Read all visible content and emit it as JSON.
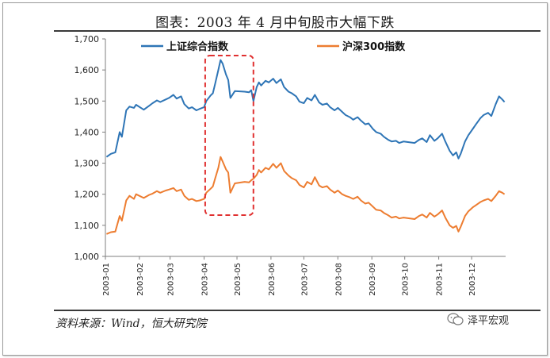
{
  "title": "图表：2003 年 4 月中旬股市大幅下跌",
  "source": "资料来源：Wind，恒大研究院",
  "watermark": "泽平宏观",
  "chart_data": {
    "type": "line",
    "x_tick_labels": [
      "2003-01",
      "2003-02",
      "2003-03",
      "2003-04",
      "2003-05",
      "2003-06",
      "2003-07",
      "2003-08",
      "2003-09",
      "2003-10",
      "2003-11",
      "2003-12"
    ],
    "y_tick_labels": [
      "1,000",
      "1,100",
      "1,200",
      "1,300",
      "1,400",
      "1,500",
      "1,600",
      "1,700"
    ],
    "ylim": [
      1000,
      1700
    ],
    "xlim": [
      "2003-01-01",
      "2004-01-01"
    ],
    "grid": false,
    "legend_position": "top-center",
    "annotation": "red dashed box around mid-April to mid-May 2003",
    "highlight_range": [
      "2003-04-02",
      "2003-05-16"
    ],
    "series": [
      {
        "name": "上证综合指数",
        "color": "#2e75b6",
        "points": [
          [
            "2003-01-02",
            1320
          ],
          [
            "2003-01-06",
            1330
          ],
          [
            "2003-01-10",
            1335
          ],
          [
            "2003-01-14",
            1400
          ],
          [
            "2003-01-16",
            1385
          ],
          [
            "2003-01-20",
            1470
          ],
          [
            "2003-01-23",
            1482
          ],
          [
            "2003-01-27",
            1478
          ],
          [
            "2003-01-29",
            1488
          ],
          [
            "2003-02-05",
            1472
          ],
          [
            "2003-02-10",
            1485
          ],
          [
            "2003-02-13",
            1493
          ],
          [
            "2003-02-17",
            1502
          ],
          [
            "2003-02-20",
            1497
          ],
          [
            "2003-02-25",
            1505
          ],
          [
            "2003-02-28",
            1510
          ],
          [
            "2003-03-04",
            1520
          ],
          [
            "2003-03-07",
            1508
          ],
          [
            "2003-03-11",
            1515
          ],
          [
            "2003-03-14",
            1490
          ],
          [
            "2003-03-18",
            1476
          ],
          [
            "2003-03-21",
            1480
          ],
          [
            "2003-03-25",
            1470
          ],
          [
            "2003-03-28",
            1475
          ],
          [
            "2003-04-01",
            1480
          ],
          [
            "2003-04-03",
            1500
          ],
          [
            "2003-04-07",
            1518
          ],
          [
            "2003-04-09",
            1525
          ],
          [
            "2003-04-11",
            1555
          ],
          [
            "2003-04-14",
            1600
          ],
          [
            "2003-04-16",
            1632
          ],
          [
            "2003-04-18",
            1620
          ],
          [
            "2003-04-21",
            1585
          ],
          [
            "2003-04-23",
            1568
          ],
          [
            "2003-04-25",
            1510
          ],
          [
            "2003-04-29",
            1532
          ],
          [
            "2003-05-08",
            1530
          ],
          [
            "2003-05-12",
            1528
          ],
          [
            "2003-05-14",
            1535
          ],
          [
            "2003-05-16",
            1500
          ],
          [
            "2003-05-19",
            1545
          ],
          [
            "2003-05-21",
            1560
          ],
          [
            "2003-05-23",
            1550
          ],
          [
            "2003-05-27",
            1565
          ],
          [
            "2003-05-30",
            1560
          ],
          [
            "2003-06-03",
            1572
          ],
          [
            "2003-06-06",
            1558
          ],
          [
            "2003-06-10",
            1570
          ],
          [
            "2003-06-13",
            1545
          ],
          [
            "2003-06-17",
            1530
          ],
          [
            "2003-06-20",
            1525
          ],
          [
            "2003-06-24",
            1515
          ],
          [
            "2003-06-27",
            1498
          ],
          [
            "2003-07-01",
            1493
          ],
          [
            "2003-07-04",
            1510
          ],
          [
            "2003-07-08",
            1502
          ],
          [
            "2003-07-11",
            1520
          ],
          [
            "2003-07-15",
            1495
          ],
          [
            "2003-07-18",
            1488
          ],
          [
            "2003-07-22",
            1492
          ],
          [
            "2003-07-25",
            1480
          ],
          [
            "2003-07-29",
            1470
          ],
          [
            "2003-08-01",
            1478
          ],
          [
            "2003-08-05",
            1465
          ],
          [
            "2003-08-08",
            1455
          ],
          [
            "2003-08-12",
            1448
          ],
          [
            "2003-08-15",
            1440
          ],
          [
            "2003-08-19",
            1448
          ],
          [
            "2003-08-22",
            1437
          ],
          [
            "2003-08-26",
            1425
          ],
          [
            "2003-08-29",
            1428
          ],
          [
            "2003-09-02",
            1410
          ],
          [
            "2003-09-05",
            1400
          ],
          [
            "2003-09-09",
            1395
          ],
          [
            "2003-09-12",
            1385
          ],
          [
            "2003-09-16",
            1375
          ],
          [
            "2003-09-19",
            1370
          ],
          [
            "2003-09-23",
            1372
          ],
          [
            "2003-09-26",
            1365
          ],
          [
            "2003-09-30",
            1370
          ],
          [
            "2003-10-10",
            1365
          ],
          [
            "2003-10-14",
            1375
          ],
          [
            "2003-10-17",
            1380
          ],
          [
            "2003-10-21",
            1368
          ],
          [
            "2003-10-24",
            1390
          ],
          [
            "2003-10-28",
            1372
          ],
          [
            "2003-10-31",
            1380
          ],
          [
            "2003-11-04",
            1395
          ],
          [
            "2003-11-07",
            1370
          ],
          [
            "2003-11-11",
            1340
          ],
          [
            "2003-11-14",
            1325
          ],
          [
            "2003-11-17",
            1335
          ],
          [
            "2003-11-19",
            1315
          ],
          [
            "2003-11-21",
            1330
          ],
          [
            "2003-11-25",
            1370
          ],
          [
            "2003-11-28",
            1390
          ],
          [
            "2003-12-02",
            1410
          ],
          [
            "2003-12-05",
            1425
          ],
          [
            "2003-12-09",
            1445
          ],
          [
            "2003-12-12",
            1455
          ],
          [
            "2003-12-16",
            1462
          ],
          [
            "2003-12-19",
            1452
          ],
          [
            "2003-12-23",
            1490
          ],
          [
            "2003-12-26",
            1515
          ],
          [
            "2003-12-29",
            1505
          ],
          [
            "2003-12-31",
            1497
          ]
        ]
      },
      {
        "name": "沪深300指数",
        "color": "#ed7d31",
        "points": [
          [
            "2003-01-02",
            1072
          ],
          [
            "2003-01-06",
            1078
          ],
          [
            "2003-01-10",
            1080
          ],
          [
            "2003-01-14",
            1130
          ],
          [
            "2003-01-16",
            1115
          ],
          [
            "2003-01-20",
            1180
          ],
          [
            "2003-01-23",
            1195
          ],
          [
            "2003-01-27",
            1185
          ],
          [
            "2003-01-29",
            1200
          ],
          [
            "2003-02-05",
            1188
          ],
          [
            "2003-02-10",
            1198
          ],
          [
            "2003-02-13",
            1202
          ],
          [
            "2003-02-17",
            1210
          ],
          [
            "2003-02-20",
            1205
          ],
          [
            "2003-02-25",
            1212
          ],
          [
            "2003-02-28",
            1215
          ],
          [
            "2003-03-04",
            1220
          ],
          [
            "2003-03-07",
            1210
          ],
          [
            "2003-03-11",
            1215
          ],
          [
            "2003-03-14",
            1195
          ],
          [
            "2003-03-18",
            1182
          ],
          [
            "2003-03-21",
            1185
          ],
          [
            "2003-03-25",
            1178
          ],
          [
            "2003-03-28",
            1180
          ],
          [
            "2003-04-01",
            1185
          ],
          [
            "2003-04-03",
            1205
          ],
          [
            "2003-04-07",
            1218
          ],
          [
            "2003-04-09",
            1225
          ],
          [
            "2003-04-11",
            1250
          ],
          [
            "2003-04-14",
            1285
          ],
          [
            "2003-04-16",
            1320
          ],
          [
            "2003-04-18",
            1305
          ],
          [
            "2003-04-21",
            1280
          ],
          [
            "2003-04-23",
            1270
          ],
          [
            "2003-04-25",
            1205
          ],
          [
            "2003-04-29",
            1235
          ],
          [
            "2003-05-08",
            1240
          ],
          [
            "2003-05-12",
            1238
          ],
          [
            "2003-05-14",
            1245
          ],
          [
            "2003-05-16",
            1250
          ],
          [
            "2003-05-19",
            1262
          ],
          [
            "2003-05-21",
            1278
          ],
          [
            "2003-05-23",
            1270
          ],
          [
            "2003-05-27",
            1285
          ],
          [
            "2003-05-30",
            1280
          ],
          [
            "2003-06-03",
            1298
          ],
          [
            "2003-06-06",
            1285
          ],
          [
            "2003-06-10",
            1300
          ],
          [
            "2003-06-13",
            1275
          ],
          [
            "2003-06-17",
            1260
          ],
          [
            "2003-06-20",
            1252
          ],
          [
            "2003-06-24",
            1245
          ],
          [
            "2003-06-27",
            1230
          ],
          [
            "2003-07-01",
            1222
          ],
          [
            "2003-07-04",
            1240
          ],
          [
            "2003-07-08",
            1232
          ],
          [
            "2003-07-11",
            1255
          ],
          [
            "2003-07-15",
            1228
          ],
          [
            "2003-07-18",
            1222
          ],
          [
            "2003-07-22",
            1226
          ],
          [
            "2003-07-25",
            1215
          ],
          [
            "2003-07-29",
            1205
          ],
          [
            "2003-08-01",
            1212
          ],
          [
            "2003-08-05",
            1200
          ],
          [
            "2003-08-08",
            1195
          ],
          [
            "2003-08-12",
            1190
          ],
          [
            "2003-08-15",
            1185
          ],
          [
            "2003-08-19",
            1192
          ],
          [
            "2003-08-22",
            1180
          ],
          [
            "2003-08-26",
            1170
          ],
          [
            "2003-08-29",
            1173
          ],
          [
            "2003-09-02",
            1160
          ],
          [
            "2003-09-05",
            1150
          ],
          [
            "2003-09-09",
            1148
          ],
          [
            "2003-09-12",
            1140
          ],
          [
            "2003-09-16",
            1132
          ],
          [
            "2003-09-19",
            1125
          ],
          [
            "2003-09-23",
            1128
          ],
          [
            "2003-09-26",
            1122
          ],
          [
            "2003-09-30",
            1125
          ],
          [
            "2003-10-10",
            1120
          ],
          [
            "2003-10-14",
            1130
          ],
          [
            "2003-10-17",
            1135
          ],
          [
            "2003-10-21",
            1125
          ],
          [
            "2003-10-24",
            1140
          ],
          [
            "2003-10-28",
            1128
          ],
          [
            "2003-10-31",
            1135
          ],
          [
            "2003-11-04",
            1148
          ],
          [
            "2003-11-07",
            1125
          ],
          [
            "2003-11-11",
            1100
          ],
          [
            "2003-11-14",
            1092
          ],
          [
            "2003-11-17",
            1098
          ],
          [
            "2003-11-19",
            1080
          ],
          [
            "2003-11-21",
            1095
          ],
          [
            "2003-11-25",
            1130
          ],
          [
            "2003-11-28",
            1145
          ],
          [
            "2003-12-02",
            1158
          ],
          [
            "2003-12-05",
            1165
          ],
          [
            "2003-12-09",
            1175
          ],
          [
            "2003-12-12",
            1180
          ],
          [
            "2003-12-16",
            1185
          ],
          [
            "2003-12-19",
            1178
          ],
          [
            "2003-12-23",
            1195
          ],
          [
            "2003-12-26",
            1210
          ],
          [
            "2003-12-29",
            1205
          ],
          [
            "2003-12-31",
            1200
          ]
        ]
      }
    ]
  }
}
